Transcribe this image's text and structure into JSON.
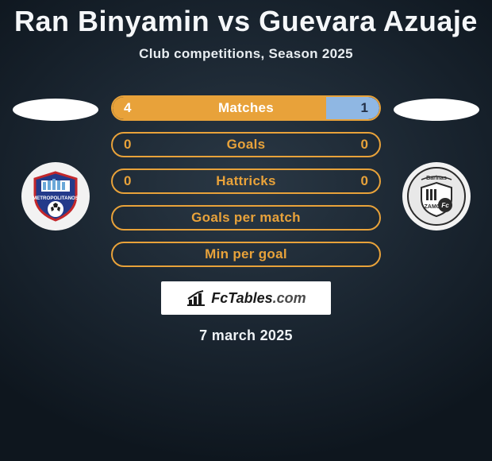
{
  "title": {
    "player1": "Ran Binyamin",
    "vs": "vs",
    "player2": "Guevara Azuaje"
  },
  "subtitle": "Club competitions, Season 2025",
  "colors": {
    "accent_orange": "#e8a23a",
    "accent_blue": "#8fb7e3",
    "text_light": "#e8edf1",
    "text_dark_on_orange": "#3a2a10",
    "bar_border": "#e8a23a",
    "bg_outer": "#0e161e",
    "bg_inner": "#2a3845",
    "white": "#ffffff"
  },
  "club_left": {
    "name": "Metropolitanos",
    "primary": "#233a8a",
    "secondary": "#c3272b"
  },
  "club_right": {
    "name": "Zamora Barinas",
    "primary": "#3a3a3a",
    "secondary": "#e5e5e5"
  },
  "stats": [
    {
      "label": "Matches",
      "left_value": "4",
      "right_value": "1",
      "left_fill_pct": 80,
      "right_fill_pct": 20,
      "left_fill_color": "#e8a23a",
      "right_fill_color": "#8fb7e3",
      "label_color": "#ffffff",
      "left_value_color": "#ffffff",
      "right_value_color": "#233046",
      "show_values": true
    },
    {
      "label": "Goals",
      "left_value": "0",
      "right_value": "0",
      "left_fill_pct": 0,
      "right_fill_pct": 0,
      "left_fill_color": "#e8a23a",
      "right_fill_color": "#8fb7e3",
      "label_color": "#e8a23a",
      "left_value_color": "#e8a23a",
      "right_value_color": "#e8a23a",
      "show_values": true
    },
    {
      "label": "Hattricks",
      "left_value": "0",
      "right_value": "0",
      "left_fill_pct": 0,
      "right_fill_pct": 0,
      "left_fill_color": "#e8a23a",
      "right_fill_color": "#8fb7e3",
      "label_color": "#e8a23a",
      "left_value_color": "#e8a23a",
      "right_value_color": "#e8a23a",
      "show_values": true
    },
    {
      "label": "Goals per match",
      "left_value": "",
      "right_value": "",
      "left_fill_pct": 0,
      "right_fill_pct": 0,
      "left_fill_color": "#e8a23a",
      "right_fill_color": "#8fb7e3",
      "label_color": "#e8a23a",
      "left_value_color": "#e8a23a",
      "right_value_color": "#e8a23a",
      "show_values": false
    },
    {
      "label": "Min per goal",
      "left_value": "",
      "right_value": "",
      "left_fill_pct": 0,
      "right_fill_pct": 0,
      "left_fill_color": "#e8a23a",
      "right_fill_color": "#8fb7e3",
      "label_color": "#e8a23a",
      "left_value_color": "#e8a23a",
      "right_value_color": "#e8a23a",
      "show_values": false
    }
  ],
  "attribution": {
    "brand_main": "FcTables",
    "brand_suffix": ".com"
  },
  "date": "7 march 2025"
}
